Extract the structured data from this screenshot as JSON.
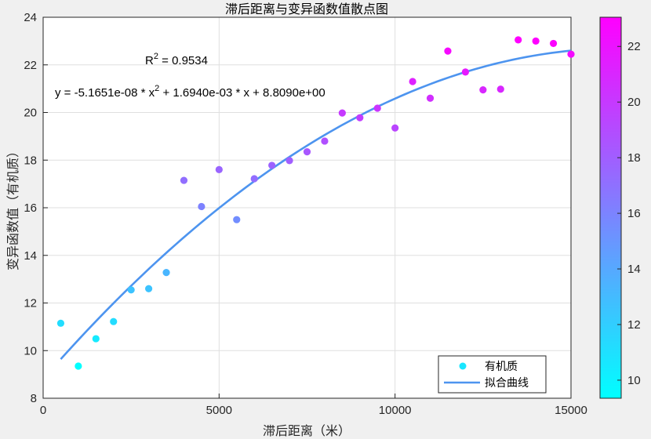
{
  "chart_data": {
    "type": "scatter",
    "title": "滞后距离与变异函数值散点图",
    "xlabel": "滞后距离（米）",
    "ylabel": "变异函数值（有机质）",
    "xlim": [
      0,
      15000
    ],
    "ylim": [
      8,
      24
    ],
    "x_ticks": [
      "0",
      "5000",
      "10000",
      "15000"
    ],
    "y_ticks": [
      "8",
      "10",
      "12",
      "14",
      "16",
      "18",
      "20",
      "22",
      "24"
    ],
    "grid": true,
    "legend_position": "bottom-right",
    "series": [
      {
        "name": "有机质",
        "marker": "circle",
        "x": [
          500,
          1000,
          1500,
          2000,
          2500,
          3000,
          3500,
          4000,
          4500,
          5000,
          5500,
          6000,
          6500,
          7000,
          7500,
          8000,
          8500,
          9000,
          9500,
          10000,
          10500,
          11000,
          11500,
          12000,
          12500,
          13000,
          13500,
          14000,
          14500,
          15000
        ],
        "y": [
          11.15,
          9.35,
          10.5,
          11.22,
          12.55,
          12.6,
          13.28,
          17.15,
          16.05,
          17.6,
          15.5,
          17.22,
          17.78,
          17.98,
          18.35,
          18.8,
          19.98,
          19.78,
          20.18,
          19.35,
          21.3,
          20.6,
          22.58,
          21.7,
          20.95,
          20.98,
          23.05,
          23.0,
          22.9,
          22.45
        ]
      },
      {
        "name": "拟合曲线",
        "type": "line",
        "color": "#4d94ef",
        "equation": "y = -5.1651e-08 * x^2 + 1.6940e-03 * x + 8.8090e+00",
        "coefficients": [
          -5.1651e-08,
          0.001694,
          8.809
        ],
        "x_range": [
          500,
          15000
        ]
      }
    ],
    "annotations": {
      "r2_label": "R",
      "r2_sup": "2",
      "r2_value": " = 0.9534",
      "eq_part1": "y = -5.1651e-08 * x",
      "eq_sup": "2",
      "eq_part2": " + 1.6940e-03 * x + 8.8090e+00"
    },
    "colorbar": {
      "colormap": "cool",
      "color_low": "#00ffff",
      "color_high": "#ff00ff",
      "range": [
        9.35,
        23.05
      ],
      "ticks": [
        "10",
        "12",
        "14",
        "16",
        "18",
        "20",
        "22"
      ],
      "tick_values": [
        10,
        12,
        14,
        16,
        18,
        20,
        22
      ]
    }
  }
}
